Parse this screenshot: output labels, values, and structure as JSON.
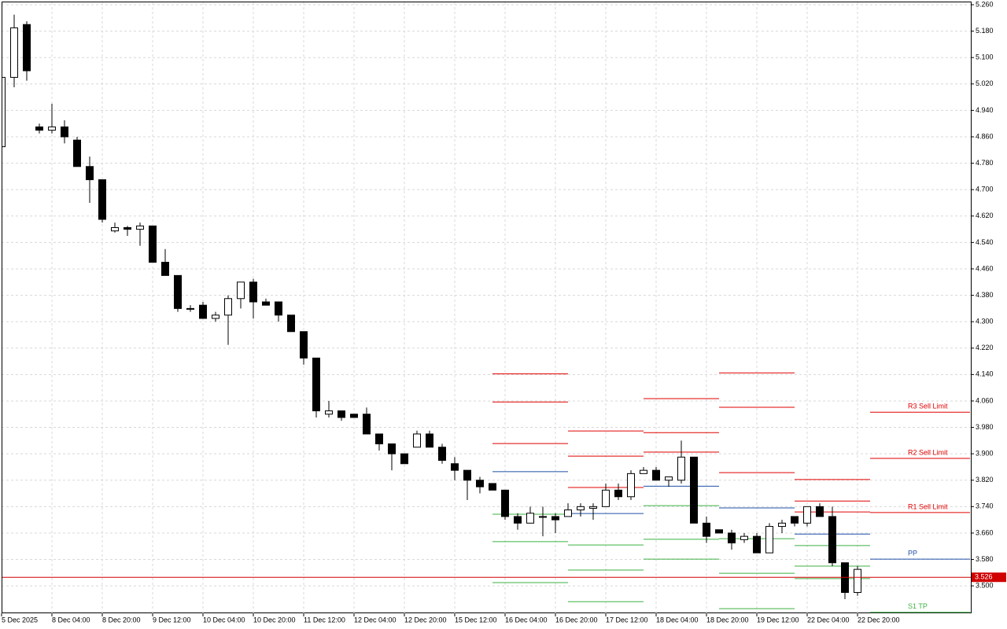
{
  "chart_data": {
    "type": "candlestick",
    "categories": [
      "5 Dec 2025",
      null,
      null,
      null,
      "8 Dec 04:00",
      null,
      null,
      null,
      "8 Dec 20:00",
      null,
      null,
      null,
      "9 Dec 12:00",
      null,
      null,
      null,
      "10 Dec 04:00",
      null,
      null,
      null,
      "10 Dec 20:00",
      null,
      null,
      null,
      "11 Dec 12:00",
      null,
      null,
      null,
      "12 Dec 04:00",
      null,
      null,
      null,
      "12 Dec 20:00",
      null,
      null,
      null,
      "15 Dec 12:00",
      null,
      null,
      null,
      "16 Dec 04:00",
      null,
      null,
      null,
      "16 Dec 20:00",
      null,
      null,
      null,
      "17 Dec 12:00",
      null,
      null,
      null,
      "18 Dec 04:00",
      null,
      null,
      null,
      "18 Dec 20:00",
      null,
      null,
      null,
      "19 Dec 12:00",
      null,
      null,
      null,
      "22 Dec 04:00",
      null,
      null,
      null,
      "22 Dec 20:00"
    ],
    "open": [
      4.83,
      5.04,
      5.2,
      4.89,
      4.88,
      4.89,
      4.85,
      4.77,
      4.73,
      4.575,
      4.585,
      4.58,
      4.59,
      4.48,
      4.44,
      4.34,
      4.35,
      4.31,
      4.32,
      4.37,
      4.42,
      4.36,
      4.36,
      4.32,
      4.27,
      4.19,
      4.02,
      4.03,
      4.02,
      4.02,
      3.96,
      3.93,
      3.9,
      3.92,
      3.96,
      3.92,
      3.87,
      3.85,
      3.82,
      3.81,
      3.79,
      3.71,
      3.69,
      3.71,
      3.71,
      3.71,
      3.73,
      3.735,
      3.74,
      3.79,
      3.77,
      3.84,
      3.85,
      3.82,
      3.82,
      3.89,
      3.69,
      3.67,
      3.66,
      3.64,
      3.65,
      3.6,
      3.68,
      3.71,
      3.69,
      3.74,
      3.71,
      3.57,
      3.48
    ],
    "high": [
      5.05,
      5.23,
      5.21,
      4.9,
      4.96,
      4.91,
      4.86,
      4.8,
      4.73,
      4.6,
      4.59,
      4.6,
      4.59,
      4.52,
      4.44,
      4.35,
      4.36,
      4.33,
      4.38,
      4.42,
      4.43,
      4.37,
      4.36,
      4.32,
      4.27,
      4.19,
      4.06,
      4.03,
      4.02,
      4.04,
      3.96,
      3.93,
      3.9,
      3.97,
      3.97,
      3.93,
      3.89,
      3.85,
      3.83,
      3.81,
      3.79,
      3.72,
      3.74,
      3.74,
      3.72,
      3.75,
      3.75,
      3.75,
      3.81,
      3.81,
      3.85,
      3.86,
      3.86,
      3.83,
      3.94,
      3.89,
      3.71,
      3.67,
      3.67,
      3.66,
      3.66,
      3.69,
      3.7,
      3.71,
      3.74,
      3.75,
      3.74,
      3.57,
      3.56
    ],
    "low": [
      4.83,
      5.01,
      5.03,
      4.87,
      4.87,
      4.84,
      4.77,
      4.66,
      4.6,
      4.57,
      4.56,
      4.53,
      4.48,
      4.44,
      4.33,
      4.33,
      4.31,
      4.3,
      4.23,
      4.34,
      4.31,
      4.35,
      4.3,
      4.27,
      4.17,
      4.01,
      4.01,
      4.0,
      4.01,
      3.96,
      3.91,
      3.85,
      3.87,
      3.92,
      3.92,
      3.87,
      3.82,
      3.76,
      3.78,
      3.79,
      3.7,
      3.67,
      3.69,
      3.65,
      3.66,
      3.71,
      3.71,
      3.7,
      3.74,
      3.76,
      3.76,
      3.84,
      3.82,
      3.8,
      3.81,
      3.69,
      3.63,
      3.66,
      3.61,
      3.63,
      3.6,
      3.6,
      3.66,
      3.68,
      3.68,
      3.71,
      3.56,
      3.46,
      3.47
    ],
    "close": [
      5.04,
      5.19,
      5.06,
      4.88,
      4.89,
      4.86,
      4.77,
      4.73,
      4.61,
      4.585,
      4.58,
      4.59,
      4.48,
      4.44,
      4.34,
      4.34,
      4.31,
      4.32,
      4.37,
      4.42,
      4.36,
      4.35,
      4.32,
      4.27,
      4.19,
      4.03,
      4.03,
      4.01,
      4.01,
      3.96,
      3.93,
      3.9,
      3.87,
      3.96,
      3.92,
      3.88,
      3.85,
      3.82,
      3.8,
      3.79,
      3.71,
      3.69,
      3.72,
      3.71,
      3.7,
      3.73,
      3.74,
      3.74,
      3.79,
      3.77,
      3.84,
      3.85,
      3.82,
      3.83,
      3.89,
      3.69,
      3.65,
      3.66,
      3.63,
      3.65,
      3.6,
      3.68,
      3.69,
      3.69,
      3.74,
      3.71,
      3.57,
      3.48,
      3.55
    ],
    "ylim": [
      3.417,
      5.26
    ],
    "yticks": [
      {
        "value": 5.26,
        "label": "5.260"
      },
      {
        "value": 5.18,
        "label": "5.180"
      },
      {
        "value": 5.1,
        "label": "5.100"
      },
      {
        "value": 5.02,
        "label": "5.020"
      },
      {
        "value": 4.94,
        "label": "4.940"
      },
      {
        "value": 4.86,
        "label": "4.860"
      },
      {
        "value": 4.78,
        "label": "4.780"
      },
      {
        "value": 4.7,
        "label": "4.700"
      },
      {
        "value": 4.62,
        "label": "4.620"
      },
      {
        "value": 4.54,
        "label": "4.540"
      },
      {
        "value": 4.46,
        "label": "4.460"
      },
      {
        "value": 4.38,
        "label": "4.380"
      },
      {
        "value": 4.3,
        "label": "4.300"
      },
      {
        "value": 4.22,
        "label": "4.220"
      },
      {
        "value": 4.14,
        "label": "4.140"
      },
      {
        "value": 4.06,
        "label": "4.060"
      },
      {
        "value": 3.98,
        "label": "3.980"
      },
      {
        "value": 3.9,
        "label": "3.900"
      },
      {
        "value": 3.82,
        "label": "3.820"
      },
      {
        "value": 3.74,
        "label": "3.740"
      },
      {
        "value": 3.66,
        "label": "3.660"
      },
      {
        "value": 3.58,
        "label": "3.580"
      },
      {
        "value": 3.5,
        "label": "3.500"
      }
    ],
    "grid": true,
    "current_price": 3.526,
    "current_price_color": "#d00000",
    "pivot_levels": [
      {
        "label": "R3 Sell Limit",
        "color": "#e00000",
        "values": [
          4.142,
          3.969,
          4.067,
          4.145,
          3.822,
          4.026
        ]
      },
      {
        "label": "R2 Sell Limit",
        "color": "#e00000",
        "values": [
          4.057,
          3.893,
          3.964,
          4.041,
          3.757,
          3.886
        ]
      },
      {
        "label": "R1 Sell Limit",
        "color": "#e00000",
        "values": [
          3.931,
          3.798,
          3.905,
          3.843,
          3.724,
          3.722
        ]
      },
      {
        "label": "PP",
        "color": "#1f4fa8",
        "values": [
          3.846,
          3.719,
          3.802,
          3.736,
          3.657,
          3.581
        ]
      },
      {
        "label": "S1 TP",
        "color": "#3cb043",
        "values": [
          3.717,
          3.624,
          3.743,
          3.643,
          3.622,
          3.42
        ]
      },
      {
        "color": "#3cb043",
        "values": [
          3.634,
          3.548,
          3.641,
          3.538,
          3.56,
          null
        ]
      },
      {
        "color": "#3cb043",
        "values": [
          3.51,
          3.452,
          3.581,
          3.431,
          3.522,
          null
        ]
      }
    ]
  }
}
